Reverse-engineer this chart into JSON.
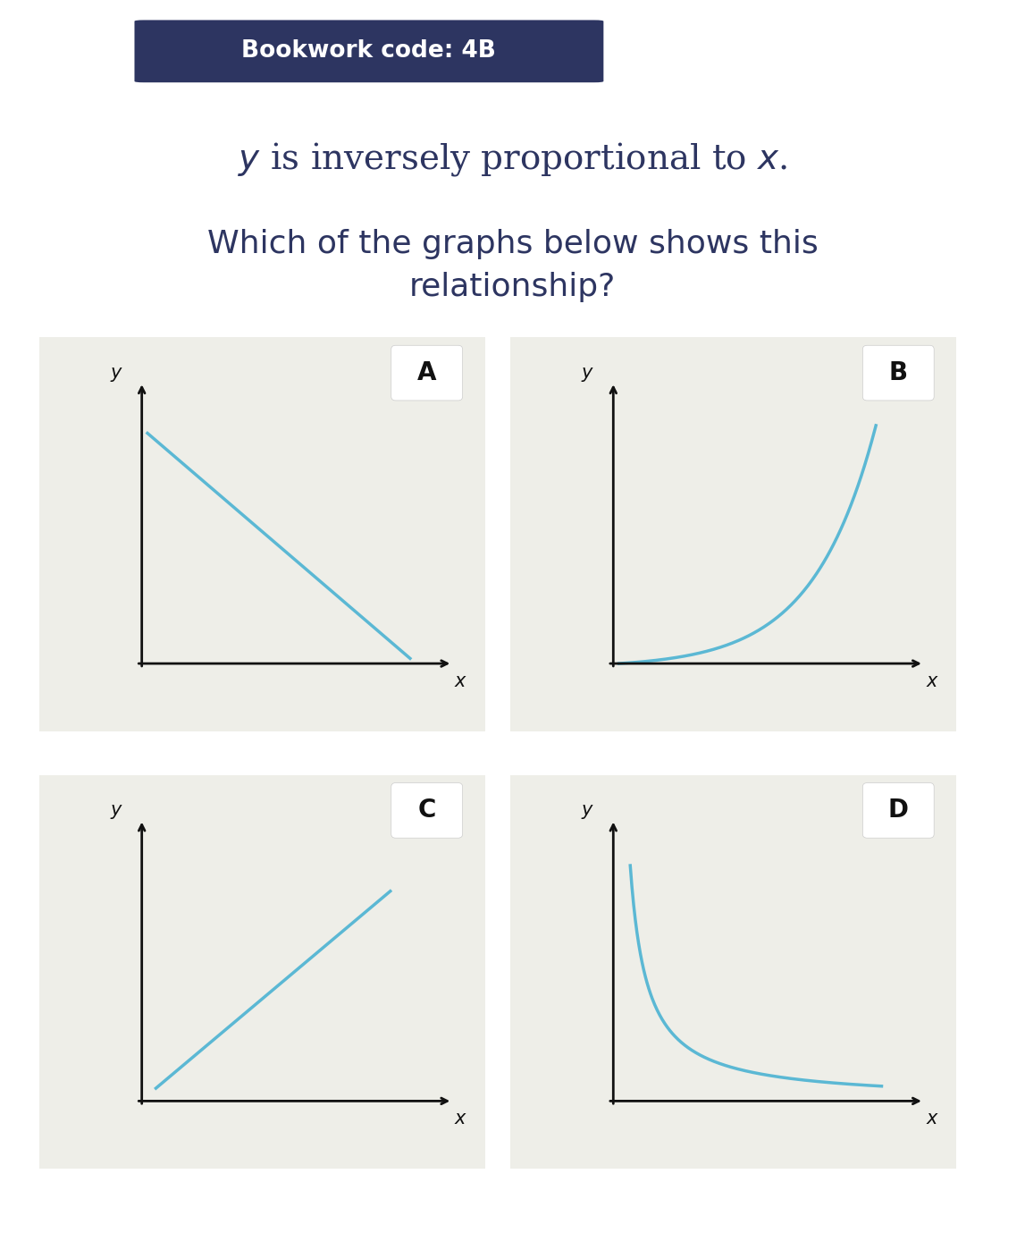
{
  "bookwork_code": "Bookwork code: 4B",
  "text1": "$y$ is inversely proportional to $x$.",
  "text2": "Which of the graphs below shows this\nrelationship?",
  "background_color": "#ffffff",
  "panel_bg_color": "#eeeee8",
  "curve_color": "#5bb8d4",
  "axis_color": "#111111",
  "text_color": "#2d3561",
  "header_bg": "#2d3561",
  "label_box_color": "#ffffff",
  "graphs": [
    {
      "label": "A",
      "type": "linear_decreasing"
    },
    {
      "label": "B",
      "type": "exponential_increasing"
    },
    {
      "label": "C",
      "type": "linear_increasing"
    },
    {
      "label": "D",
      "type": "inverse"
    }
  ]
}
